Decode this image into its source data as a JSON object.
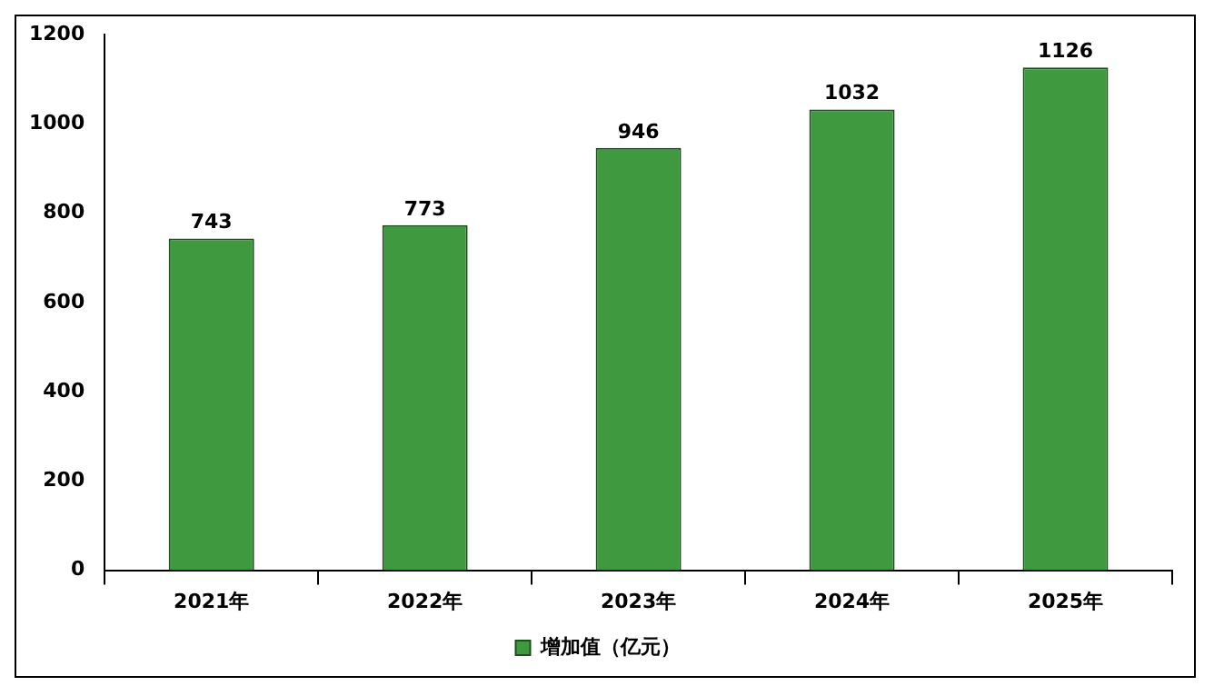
{
  "chart_data": {
    "type": "bar",
    "categories": [
      "2021年",
      "2022年",
      "2023年",
      "2024年",
      "2025年"
    ],
    "series": [
      {
        "name": "增加值（亿元）",
        "color": "#3f9a3f",
        "values": [
          743,
          773,
          946,
          1032,
          1126
        ]
      }
    ],
    "ylim": [
      0,
      1200
    ],
    "yticks": [
      0,
      200,
      400,
      600,
      800,
      1000,
      1200
    ],
    "grid": false,
    "legend": "bottom",
    "data_labels": true
  }
}
